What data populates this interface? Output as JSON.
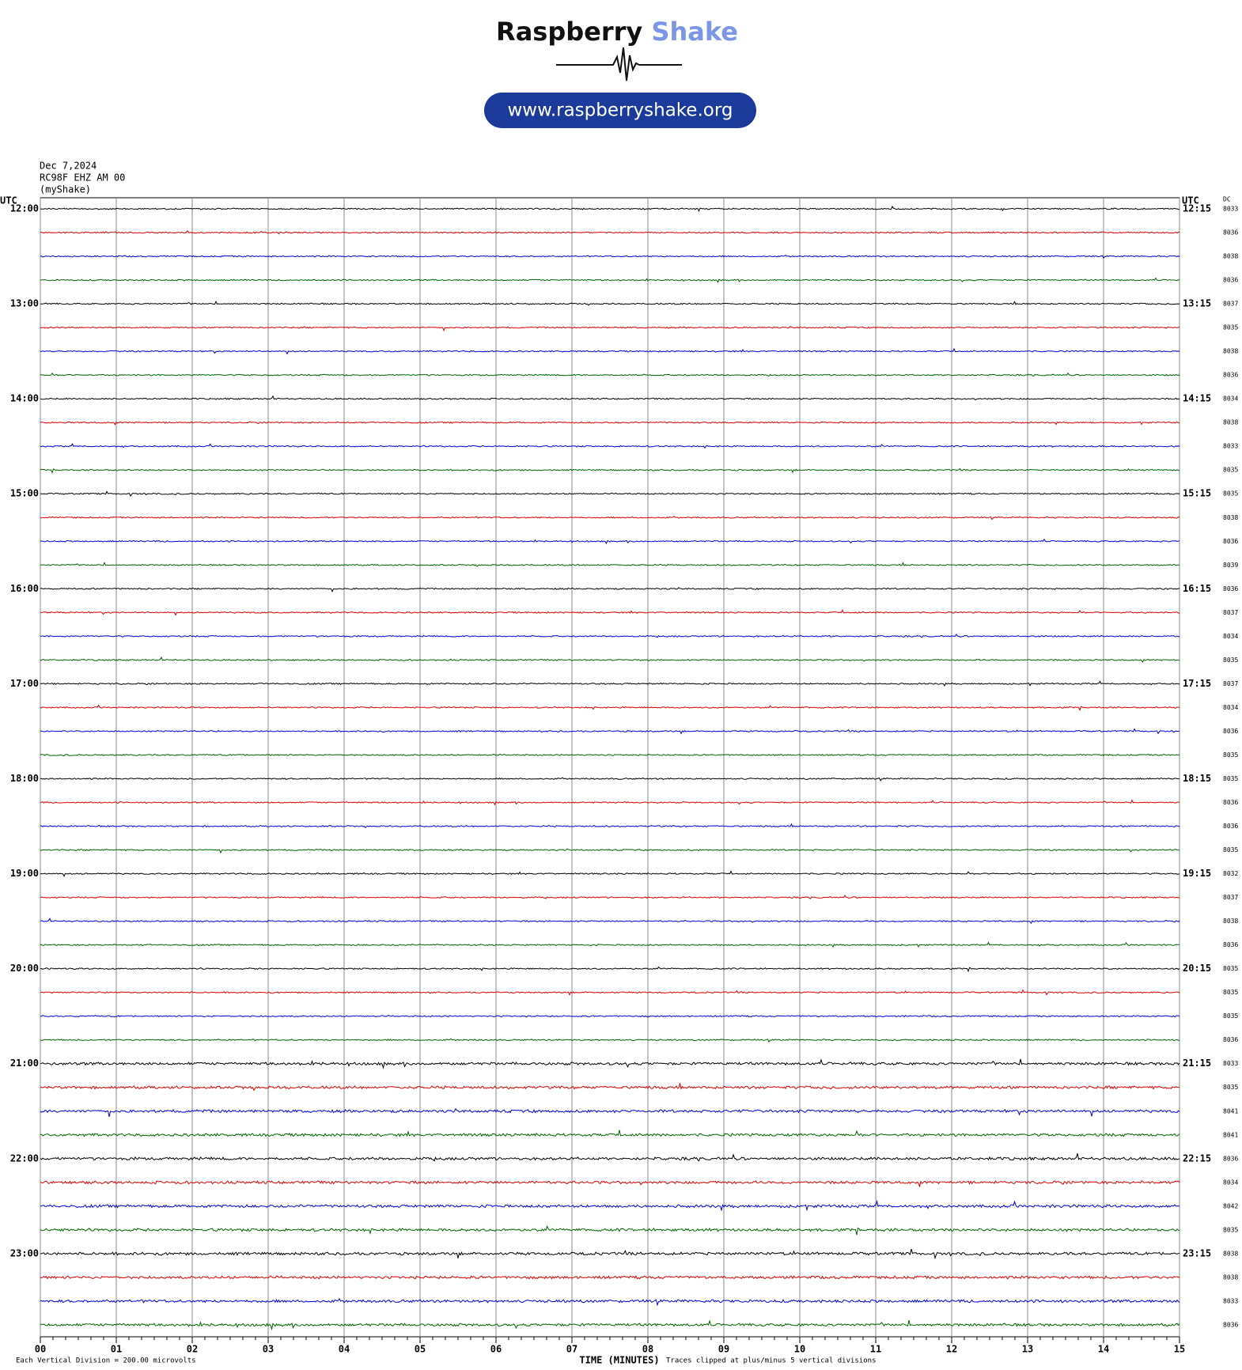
{
  "logo": {
    "brand1": "Raspberry",
    "brand2": "Shake",
    "url": "www.raspberryshake.org"
  },
  "chart_data": {
    "type": "helicorder",
    "header": [
      "Dec 7,2024",
      "RC98F EHZ AM 00",
      "(myShake)"
    ],
    "utc_label": "UTC",
    "dc_label": "DC",
    "left_labels": [
      "12:00",
      "13:00",
      "14:00",
      "15:00",
      "16:00",
      "17:00",
      "18:00",
      "19:00",
      "20:00",
      "21:00",
      "22:00",
      "23:00"
    ],
    "right_labels": [
      "12:15",
      "13:15",
      "14:15",
      "15:15",
      "16:15",
      "17:15",
      "18:15",
      "19:15",
      "20:15",
      "21:15",
      "22:15",
      "23:15"
    ],
    "dc_values": [
      8033,
      8036,
      8038,
      8036,
      8037,
      8035,
      8038,
      8036,
      8034,
      8038,
      8033,
      8035,
      8035,
      8038,
      8036,
      8039,
      8036,
      8037,
      8034,
      8035,
      8037,
      8034,
      8036,
      8035,
      8035,
      8036,
      8036,
      8035,
      8032,
      8037,
      8038,
      8036,
      8035,
      8035,
      8035,
      8036,
      8033,
      8035,
      8041,
      8041,
      8036,
      8034,
      8042,
      8035,
      8038,
      8038,
      8033,
      8036
    ],
    "colors": [
      "#000000",
      "#e00000",
      "#0000e0",
      "#006400"
    ],
    "xlim": [
      0,
      15
    ],
    "xticks": [
      {
        "value": 0,
        "label": "00"
      },
      {
        "value": 1,
        "label": "01"
      },
      {
        "value": 2,
        "label": "02"
      },
      {
        "value": 3,
        "label": "03"
      },
      {
        "value": 4,
        "label": "04"
      },
      {
        "value": 5,
        "label": "05"
      },
      {
        "value": 6,
        "label": "06"
      },
      {
        "value": 7,
        "label": "07"
      },
      {
        "value": 8,
        "label": "08"
      },
      {
        "value": 9,
        "label": "09"
      },
      {
        "value": 10,
        "label": "10"
      },
      {
        "value": 11,
        "label": "11"
      },
      {
        "value": 12,
        "label": "12"
      },
      {
        "value": 13,
        "label": "13"
      },
      {
        "value": 14,
        "label": "14"
      },
      {
        "value": 15,
        "label": "15"
      }
    ],
    "xlabel": "TIME (MINUTES)",
    "scale_note": "Each Vertical Division =  200.00 microvolts",
    "clip_note": "Traces clipped at plus/minus 5 vertical divisions",
    "grid": true
  }
}
